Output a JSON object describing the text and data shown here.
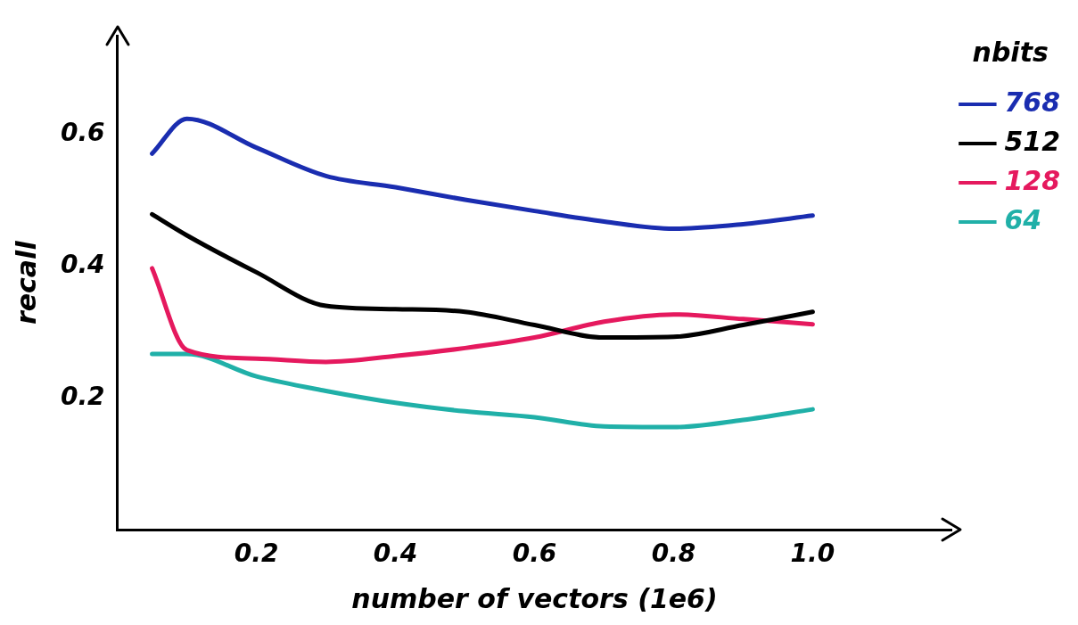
{
  "chart_data": {
    "type": "line",
    "xlabel": "number of vectors (1e6)",
    "ylabel": "recall",
    "legend_title": "nbits",
    "legend": "top right",
    "grid": false,
    "marker": "none",
    "line_style": "solid",
    "xlim": [
      0,
      1.2
    ],
    "ylim": [
      0,
      0.75
    ],
    "xticks": [
      0.2,
      0.4,
      0.6,
      0.8,
      {
        "value": 1,
        "label": "1.0"
      }
    ],
    "yticks": [
      0.2,
      0.4,
      0.6
    ],
    "x": [
      0.05,
      0.1,
      0.2,
      0.3,
      0.4,
      0.5,
      0.6,
      0.7,
      0.8,
      0.9,
      1.0
    ],
    "series": [
      {
        "name": "768",
        "color": "#1a2db0",
        "values": [
          0.571,
          0.624,
          0.58,
          0.537,
          0.52,
          0.501,
          0.484,
          0.468,
          0.457,
          0.464,
          0.477
        ]
      },
      {
        "name": "512",
        "color": "#000000",
        "values": [
          0.479,
          0.447,
          0.391,
          0.34,
          0.335,
          0.331,
          0.311,
          0.292,
          0.293,
          0.311,
          0.331
        ]
      },
      {
        "name": "128",
        "color": "#e5195e",
        "values": [
          0.397,
          0.273,
          0.26,
          0.255,
          0.264,
          0.276,
          0.292,
          0.316,
          0.327,
          0.32,
          0.312
        ]
      },
      {
        "name": "64",
        "color": "#20b0a8",
        "values": [
          0.267,
          0.267,
          0.233,
          0.211,
          0.193,
          0.18,
          0.171,
          0.157,
          0.156,
          0.167,
          0.183
        ]
      }
    ]
  }
}
